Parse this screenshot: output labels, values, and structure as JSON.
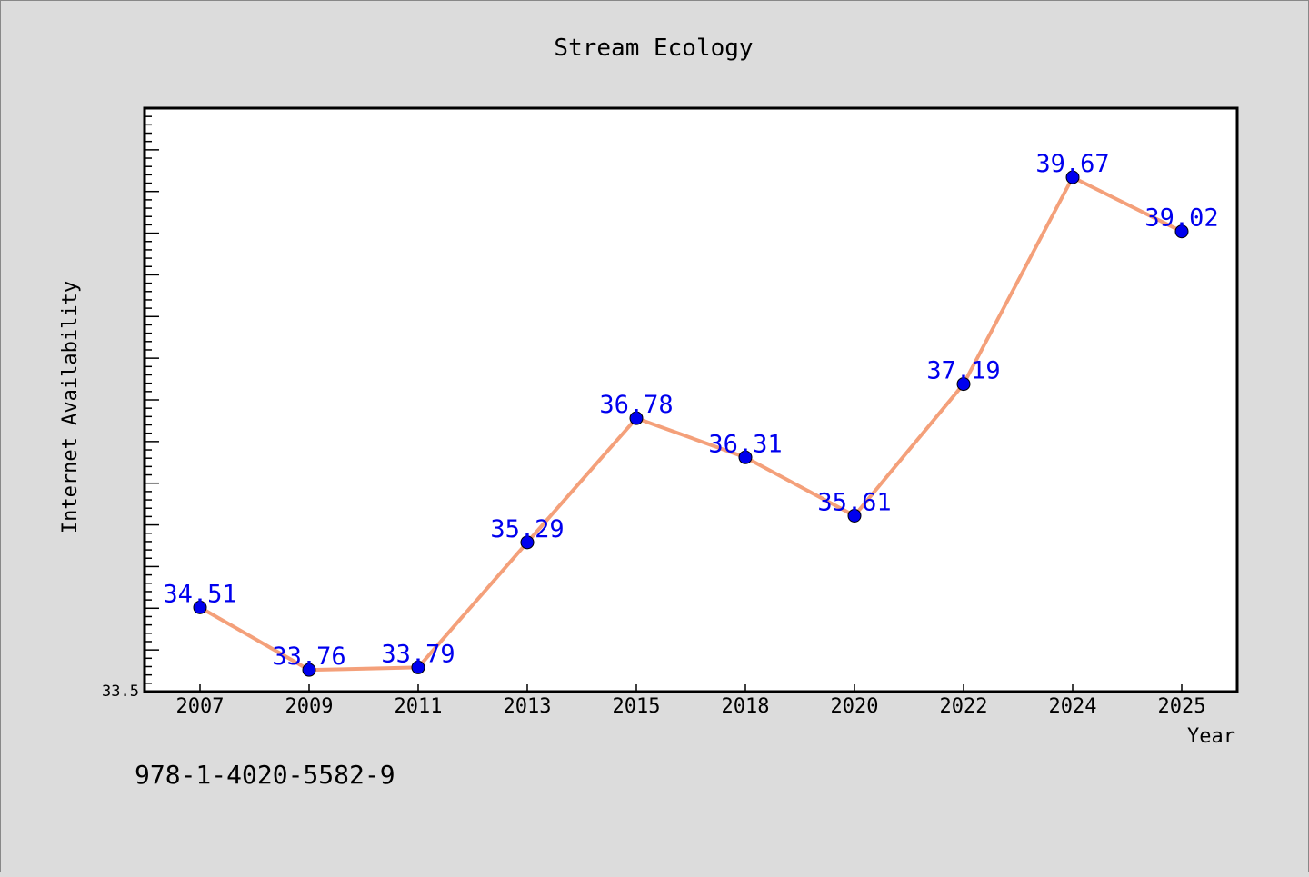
{
  "chart_data": {
    "type": "line",
    "title": "Stream Ecology",
    "xlabel": "Year",
    "ylabel": "Internet Availability",
    "categories": [
      "2007",
      "2009",
      "2011",
      "2013",
      "2015",
      "2018",
      "2020",
      "2022",
      "2024",
      "2025"
    ],
    "series": [
      {
        "values": [
          34.51,
          33.76,
          33.79,
          35.29,
          36.78,
          36.31,
          35.61,
          37.19,
          39.67,
          39.02
        ]
      }
    ],
    "ylim": [
      33.5,
      40.5
    ],
    "y_tick_labels": [
      "33.5"
    ],
    "grid": false,
    "data_labels": true
  },
  "footer": {
    "isbn": "978-1-4020-5582-9"
  },
  "colors": {
    "background": "#dcdcdc",
    "plot_background": "#ffffff",
    "line": "#f4a07a",
    "marker": "#0000ee",
    "data_label": "#0000ee",
    "text": "#000000"
  }
}
